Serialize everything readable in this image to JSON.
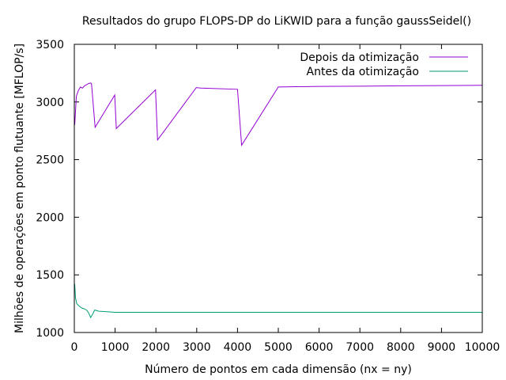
{
  "chart_data": {
    "type": "line",
    "title": "Resultados do grupo FLOPS-DP do LiKWID para a função gaussSeidel()",
    "xlabel": "Número de pontos em cada dimensão (nx = ny)",
    "ylabel": "Milhões de operações em ponto flutuante [MFLOP/s]",
    "xlim": [
      0,
      10000
    ],
    "ylim": [
      1000,
      3500
    ],
    "x_ticks": [
      "0",
      "1000",
      "2000",
      "3000",
      "4000",
      "5000",
      "6000",
      "7000",
      "8000",
      "9000",
      "10000"
    ],
    "y_ticks": [
      "1000",
      "1500",
      "2000",
      "2500",
      "3000",
      "3500"
    ],
    "grid": false,
    "legend_position": "top-right",
    "series": [
      {
        "name": "Depois da otimização",
        "color": "#9400d3",
        "x": [
          10,
          50,
          100,
          150,
          200,
          250,
          300,
          350,
          400,
          420,
          510,
          990,
          1030,
          1990,
          2040,
          2990,
          3100,
          4000,
          4100,
          5000,
          6000,
          7000,
          8000,
          9000,
          10000
        ],
        "y": [
          2800,
          3050,
          3100,
          3130,
          3120,
          3140,
          3150,
          3160,
          3165,
          3160,
          2780,
          3060,
          2770,
          3105,
          2670,
          3125,
          3120,
          3110,
          2625,
          3130,
          3135,
          3137,
          3140,
          3142,
          3145
        ]
      },
      {
        "name": "Antes da otimização",
        "color": "#009e73",
        "x": [
          10,
          30,
          60,
          100,
          150,
          200,
          250,
          300,
          350,
          400,
          450,
          500,
          600,
          800,
          1000,
          1500,
          2000,
          3000,
          4000,
          5000,
          6000,
          7000,
          8000,
          9000,
          10000
        ],
        "y": [
          1420,
          1300,
          1250,
          1235,
          1220,
          1210,
          1205,
          1195,
          1170,
          1130,
          1160,
          1195,
          1185,
          1180,
          1175,
          1175,
          1175,
          1175,
          1175,
          1175,
          1175,
          1175,
          1175,
          1175,
          1175
        ]
      }
    ]
  }
}
